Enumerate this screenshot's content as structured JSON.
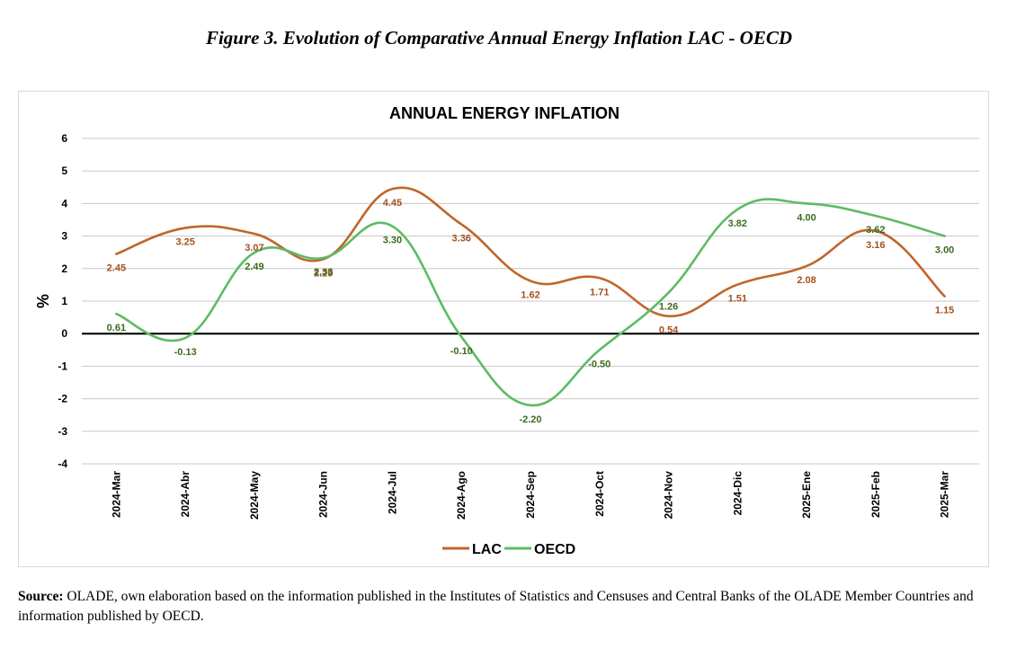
{
  "figure_title": "Figure 3. Evolution of Comparative Annual Energy Inflation LAC - OECD",
  "source": {
    "label": "Source:",
    "text": "OLADE, own elaboration based on the information published in the Institutes of Statistics and Censuses and Central Banks of the OLADE Member Countries and information published by OECD."
  },
  "chart_data": {
    "type": "line",
    "title": "ANNUAL ENERGY INFLATION",
    "xlabel": "",
    "ylabel": "%",
    "ylim": [
      -4,
      6
    ],
    "yticks": [
      6,
      5,
      4,
      3,
      2,
      1,
      0,
      -1,
      -2,
      -3,
      -4
    ],
    "grid": true,
    "legend": "bottom",
    "categories": [
      "2024-Mar",
      "2024-Abr",
      "2024-May",
      "2024-Jun",
      "2024-Jul",
      "2024-Ago",
      "2024-Sep",
      "2024-Oct",
      "2024-Nov",
      "2024-Dic",
      "2025-Ene",
      "2025-Feb",
      "2025-Mar"
    ],
    "series": [
      {
        "name": "LAC",
        "color": "#c0662a",
        "label_color": "#a4501f",
        "values": [
          2.45,
          3.25,
          3.07,
          2.29,
          4.45,
          3.36,
          1.62,
          1.71,
          0.54,
          1.51,
          2.08,
          3.16,
          1.15
        ],
        "labels": [
          "2.45",
          "3.25",
          "3.07",
          "2.29",
          "4.45",
          "3.36",
          "1.62",
          "1.71",
          "0.54",
          "1.51",
          "2.08",
          "3.16",
          "1.15"
        ]
      },
      {
        "name": "OECD",
        "color": "#5dbb63",
        "label_color": "#3d6b1e",
        "values": [
          0.61,
          -0.13,
          2.49,
          2.33,
          3.3,
          -0.1,
          -2.2,
          -0.5,
          1.26,
          3.82,
          4.0,
          3.62,
          3.0
        ],
        "labels": [
          "0.61",
          "-0.13",
          "2.49",
          "2.33",
          "3.30",
          "-0.10",
          "-2.20",
          "-0.50",
          "1.26",
          "3.82",
          "4.00",
          "3.62",
          "3.00"
        ]
      }
    ]
  }
}
